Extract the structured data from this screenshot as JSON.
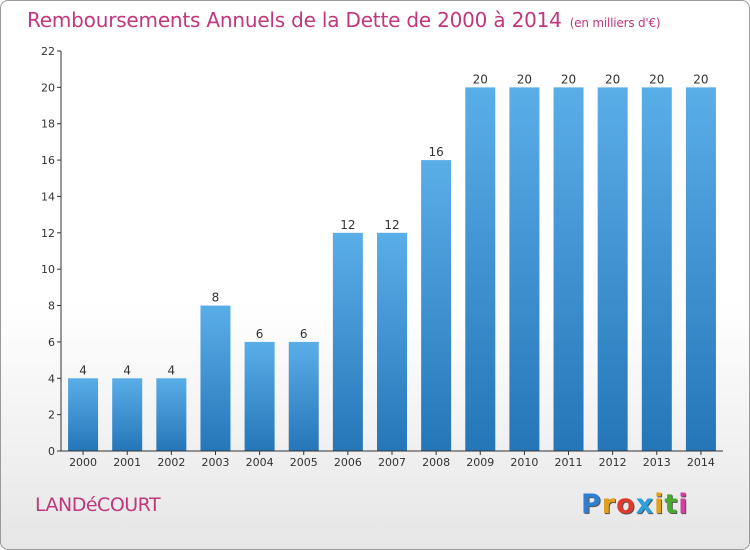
{
  "title": "Remboursements Annuels de la Dette de 2000 à 2014",
  "unit": "(en milliers d'€)",
  "commune": "LANDéCOURT",
  "logo": {
    "letters": [
      "P",
      "r",
      "o",
      "x",
      "i",
      "t",
      "i"
    ],
    "colors": [
      "#2f7fd0",
      "#e0a020",
      "#e03a2f",
      "#2aa0e0",
      "#e0a020",
      "#4aaa30",
      "#d040a0"
    ]
  },
  "colors": {
    "title": "#c0377d",
    "bar_top": "#5aaee8",
    "bar_bottom": "#2576b8"
  },
  "chart_data": {
    "type": "bar",
    "categories": [
      "2000",
      "2001",
      "2002",
      "2003",
      "2004",
      "2005",
      "2006",
      "2007",
      "2008",
      "2009",
      "2010",
      "2011",
      "2012",
      "2013",
      "2014"
    ],
    "values": [
      4,
      4,
      4,
      8,
      6,
      6,
      12,
      12,
      16,
      20,
      20,
      20,
      20,
      20,
      20
    ],
    "ylim": [
      0,
      22
    ],
    "yticks": [
      0,
      2,
      4,
      6,
      8,
      10,
      12,
      14,
      16,
      18,
      20,
      22
    ],
    "grid": false,
    "legend": "none"
  }
}
